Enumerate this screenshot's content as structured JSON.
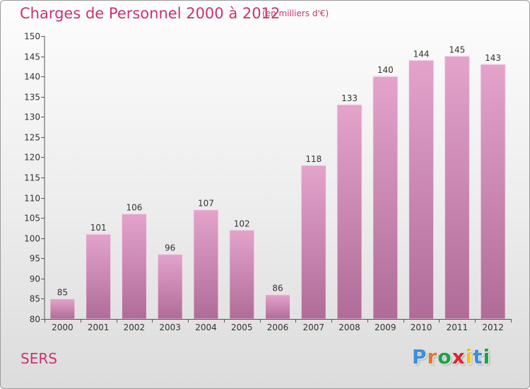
{
  "header": {
    "title": "Charges de Personnel 2000 à 2012",
    "subtitle": "(en milliers d'€)"
  },
  "footer": {
    "commune": "SERS",
    "logo_text": "Proxiti",
    "logo_colors": [
      "#3a8fd8",
      "#e8732a",
      "#1aa34a",
      "#d9262f",
      "#f0c419",
      "#3a8fd8",
      "#1aa34a"
    ]
  },
  "chart_data": {
    "type": "bar",
    "title": "Charges de Personnel 2000 à 2012",
    "subtitle": "(en milliers d'€)",
    "xlabel": "",
    "ylabel": "",
    "categories": [
      "2000",
      "2001",
      "2002",
      "2003",
      "2004",
      "2005",
      "2006",
      "2007",
      "2008",
      "2009",
      "2010",
      "2011",
      "2012"
    ],
    "values": [
      85,
      101,
      106,
      96,
      107,
      102,
      86,
      118,
      133,
      140,
      144,
      145,
      143
    ],
    "ylim": [
      80,
      150
    ],
    "yticks": [
      80,
      85,
      90,
      95,
      100,
      105,
      110,
      115,
      120,
      125,
      130,
      135,
      140,
      145,
      150
    ],
    "grid": false,
    "legend": "none",
    "bar_color_top": "#e3a3cb",
    "bar_color_bottom": "#b06c98"
  }
}
